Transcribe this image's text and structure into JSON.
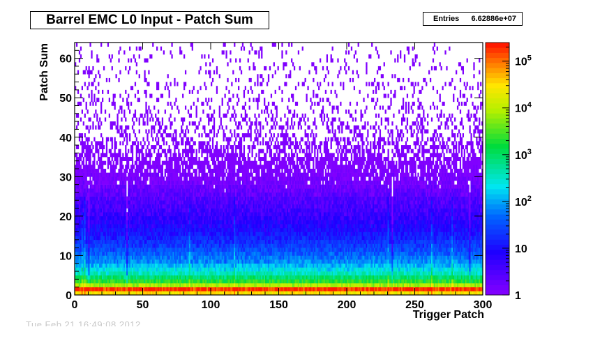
{
  "chart_data": {
    "type": "heatmap",
    "title": "Barrel EMC L0 Input - Patch Sum",
    "xlabel": "Trigger Patch",
    "ylabel": "Patch Sum",
    "xlim": [
      0,
      300
    ],
    "ylim": [
      0,
      64
    ],
    "x_ticks": [
      0,
      50,
      100,
      150,
      200,
      250,
      300
    ],
    "y_ticks": [
      0,
      10,
      20,
      30,
      40,
      50,
      60
    ],
    "z_scale": "log",
    "z_range": [
      1,
      250000
    ],
    "z_ticks": [
      {
        "value": 1,
        "label": "1"
      },
      {
        "value": 10,
        "label": "10"
      },
      {
        "value": 100,
        "label": "10",
        "exp": "2"
      },
      {
        "value": 1000,
        "label": "10",
        "exp": "3"
      },
      {
        "value": 10000,
        "label": "10",
        "exp": "4"
      },
      {
        "value": 100000,
        "label": "10",
        "exp": "5"
      }
    ],
    "stats": {
      "label": "Entries",
      "value": "6.62886e+07"
    },
    "y_profile": [
      {
        "y": 0,
        "count": 30000
      },
      {
        "y": 1,
        "count": 200000
      },
      {
        "y": 2,
        "count": 9000
      },
      {
        "y": 3,
        "count": 2200
      },
      {
        "y": 5,
        "count": 400
      },
      {
        "y": 8,
        "count": 80
      },
      {
        "y": 12,
        "count": 25
      },
      {
        "y": 16,
        "count": 10
      },
      {
        "y": 20,
        "count": 5
      },
      {
        "y": 24,
        "count": 3
      },
      {
        "y": 28,
        "count": 1.4
      },
      {
        "y": 33,
        "count": 0.8
      },
      {
        "y": 40,
        "count": 0.35
      },
      {
        "y": 50,
        "count": 0.15
      },
      {
        "y": 63,
        "count": 0.08
      }
    ],
    "hot_columns": [
      5,
      7,
      84,
      110,
      117,
      230,
      262,
      277
    ],
    "cold_columns": [
      10,
      38,
      110,
      233,
      290
    ],
    "grid": false
  },
  "faded_text": "Tue Feb 21 16:49:08 2012"
}
